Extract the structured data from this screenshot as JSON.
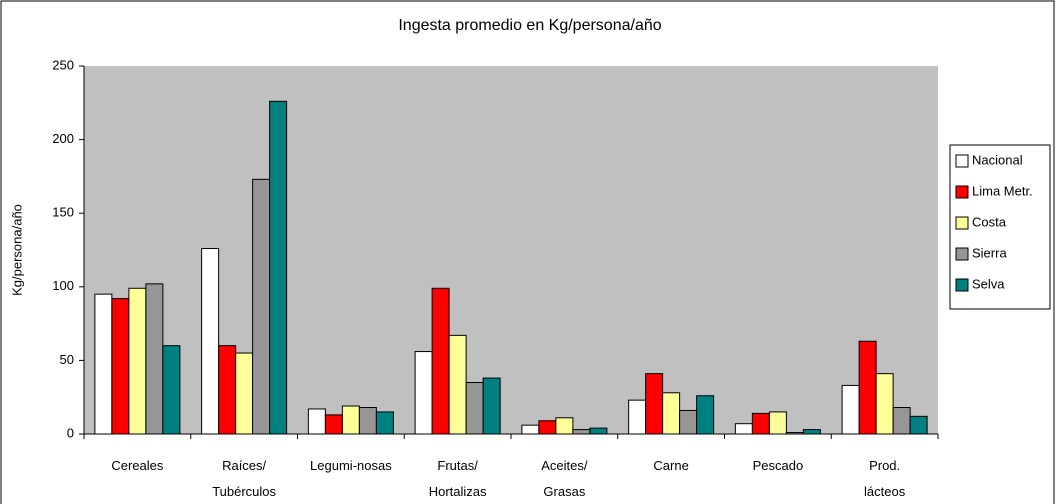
{
  "chart_data": {
    "type": "bar",
    "title": "Ingesta promedio en Kg/persona/año",
    "y_label": "Kg/persona/año",
    "categories": [
      "Cereales",
      "Raíces/\nTubérculos",
      "Legumi-nosas",
      "Frutas/\nHortalizas",
      "Aceites/\nGrasas",
      "Carne",
      "Pescado",
      "Prod.\nlácteos"
    ],
    "series": [
      {
        "name": "Nacional",
        "color": "#ffffff",
        "values": [
          95,
          126,
          17,
          56,
          6,
          23,
          7,
          33
        ]
      },
      {
        "name": "Lima Metr.",
        "color": "#ff0000",
        "values": [
          92,
          60,
          13,
          99,
          9,
          41,
          14,
          63
        ]
      },
      {
        "name": "Costa",
        "color": "#ffff99",
        "values": [
          99,
          55,
          19,
          67,
          11,
          28,
          15,
          41
        ]
      },
      {
        "name": "Sierra",
        "color": "#969696",
        "values": [
          102,
          173,
          18,
          35,
          3,
          16,
          1,
          18
        ]
      },
      {
        "name": "Selva",
        "color": "#008080",
        "values": [
          60,
          226,
          15,
          38,
          4,
          26,
          3,
          12
        ]
      }
    ],
    "ylim": [
      0,
      250
    ],
    "yticks": [
      0,
      50,
      100,
      150,
      200,
      250
    ],
    "legend": "right",
    "plot_background": "#c0c0c0"
  }
}
